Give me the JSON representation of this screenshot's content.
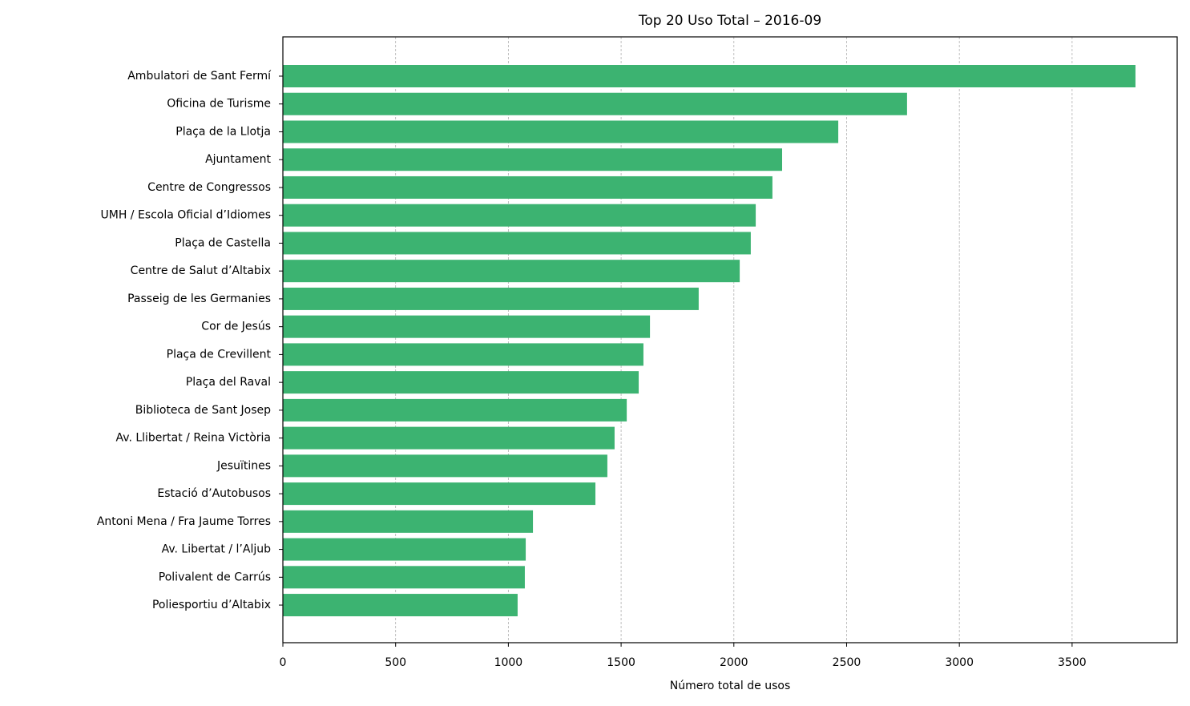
{
  "chart_data": {
    "type": "barh",
    "title": "Top 20 Uso Total – 2016-09",
    "xlabel": "Número total de usos",
    "categories": [
      "Ambulatori de Sant Fermí",
      "Oficina de Turisme",
      "Plaça de la Llotja",
      "Ajuntament",
      "Centre de Congressos",
      "UMH / Escola Oficial d’Idiomes",
      "Plaça de Castella",
      "Centre de Salut d’Altabix",
      "Passeig de les Germanies",
      "Cor de Jesús",
      "Plaça de Crevillent",
      "Plaça del Raval",
      "Biblioteca de Sant Josep",
      "Av. Llibertat / Reina Victòria",
      "Jesuïtines",
      "Estació d’Autobusos",
      "Antoni Mena / Fra Jaume Torres",
      "Av. Libertat / l’Aljub",
      "Polivalent de Carrús",
      "Poliesportiu d’Altabix"
    ],
    "values": [
      3781,
      2768,
      2463,
      2214,
      2171,
      2097,
      2075,
      2026,
      1844,
      1628,
      1599,
      1578,
      1525,
      1471,
      1439,
      1386,
      1109,
      1077,
      1073,
      1041
    ],
    "color": "#3cb371",
    "xlim": [
      0,
      3966
    ],
    "xticks": [
      0,
      500,
      1000,
      1500,
      2000,
      2500,
      3000,
      3500
    ],
    "grid": true
  }
}
